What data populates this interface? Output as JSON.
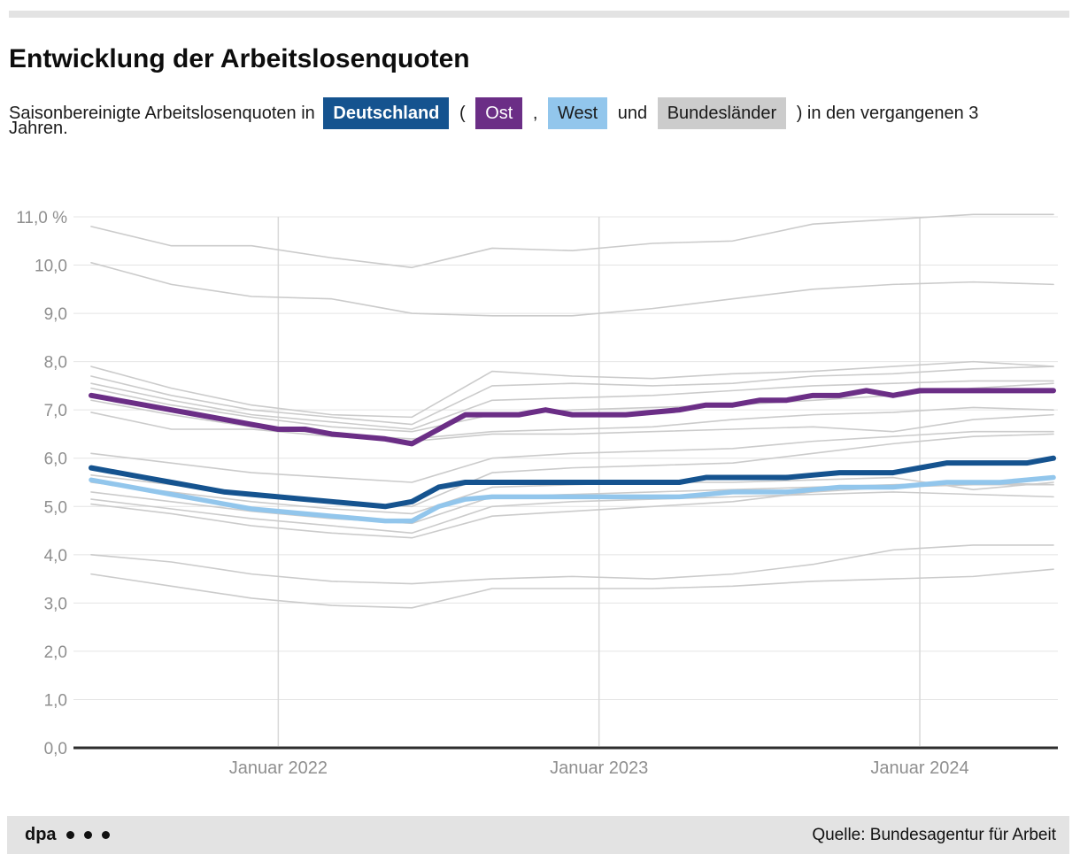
{
  "header": {
    "title": "Entwicklung der Arbeitslosenquoten"
  },
  "subtitle": {
    "part1": "Saisonbereinigte Arbeitslosenquoten in",
    "open_paren": "(",
    "comma": ",",
    "und": "und",
    "part2": ") in den vergangenen 3",
    "part3": "Jahren.",
    "chips": [
      {
        "label": "Deutschland",
        "bg": "#15538f",
        "fg": "#ffffff",
        "bold": true
      },
      {
        "label": "Ost",
        "bg": "#6b2e86",
        "fg": "#ffffff",
        "bold": false
      },
      {
        "label": "West",
        "bg": "#92c6ec",
        "fg": "#1a1a1a",
        "bold": false
      },
      {
        "label": "Bundesländer",
        "bg": "#cccccc",
        "fg": "#1a1a1a",
        "bold": false
      }
    ]
  },
  "chart_data": {
    "type": "line",
    "title": "Entwicklung der Arbeitslosenquoten",
    "xlabel": "",
    "ylabel": "",
    "ylim": [
      0,
      11
    ],
    "grid": true,
    "months_total": 37,
    "y_ticks": [
      {
        "value": 0,
        "label": "0,0"
      },
      {
        "value": 1,
        "label": "1,0"
      },
      {
        "value": 2,
        "label": "2,0"
      },
      {
        "value": 3,
        "label": "3,0"
      },
      {
        "value": 4,
        "label": "4,0"
      },
      {
        "value": 5,
        "label": "5,0"
      },
      {
        "value": 6,
        "label": "6,0"
      },
      {
        "value": 7,
        "label": "7,0"
      },
      {
        "value": 8,
        "label": "8,0"
      },
      {
        "value": 9,
        "label": "9,0"
      },
      {
        "value": 10,
        "label": "10,0"
      },
      {
        "value": 11,
        "label": "11,0 %"
      }
    ],
    "x_ticks": [
      {
        "month": 7,
        "label": "Januar 2022"
      },
      {
        "month": 19,
        "label": "Januar 2023"
      },
      {
        "month": 31,
        "label": "Januar 2024"
      }
    ],
    "series": [
      {
        "name": "West",
        "color": "#92c6ec",
        "stroke_width": 5.5,
        "month_step": 1,
        "values": [
          5.55,
          5.45,
          5.35,
          5.25,
          5.15,
          5.05,
          4.95,
          4.9,
          4.85,
          4.8,
          4.75,
          4.7,
          4.7,
          5.0,
          5.15,
          5.2,
          5.2,
          5.2,
          5.2,
          5.2,
          5.2,
          5.2,
          5.2,
          5.25,
          5.3,
          5.3,
          5.3,
          5.35,
          5.4,
          5.4,
          5.4,
          5.45,
          5.5,
          5.5,
          5.5,
          5.55,
          5.6
        ]
      },
      {
        "name": "Deutschland",
        "color": "#15538f",
        "stroke_width": 6,
        "month_step": 1,
        "values": [
          5.8,
          5.7,
          5.6,
          5.5,
          5.4,
          5.3,
          5.25,
          5.2,
          5.15,
          5.1,
          5.05,
          5.0,
          5.1,
          5.4,
          5.5,
          5.5,
          5.5,
          5.5,
          5.5,
          5.5,
          5.5,
          5.5,
          5.5,
          5.6,
          5.6,
          5.6,
          5.6,
          5.65,
          5.7,
          5.7,
          5.7,
          5.8,
          5.9,
          5.9,
          5.9,
          5.9,
          6.0
        ]
      },
      {
        "name": "Ost",
        "color": "#6b2e86",
        "stroke_width": 6,
        "month_step": 1,
        "values": [
          7.3,
          7.2,
          7.1,
          7.0,
          6.9,
          6.8,
          6.7,
          6.6,
          6.6,
          6.5,
          6.45,
          6.4,
          6.3,
          6.6,
          6.9,
          6.9,
          6.9,
          7.0,
          6.9,
          6.9,
          6.9,
          6.95,
          7.0,
          7.1,
          7.1,
          7.2,
          7.2,
          7.3,
          7.3,
          7.4,
          7.3,
          7.4,
          7.4,
          7.4,
          7.4,
          7.4,
          7.4
        ]
      }
    ],
    "bundeslaender": {
      "color": "#cbcbcb",
      "stroke_width": 1.6,
      "month_step": 3,
      "lines": [
        [
          10.8,
          10.4,
          10.4,
          10.15,
          9.95,
          10.35,
          10.3,
          10.45,
          10.5,
          10.85,
          10.95,
          11.05,
          11.05
        ],
        [
          10.05,
          9.6,
          9.35,
          9.3,
          9.0,
          8.95,
          8.95,
          9.1,
          9.3,
          9.5,
          9.6,
          9.65,
          9.6
        ],
        [
          7.9,
          7.45,
          7.1,
          6.9,
          6.85,
          7.8,
          7.7,
          7.65,
          7.75,
          7.8,
          7.9,
          8.0,
          7.9
        ],
        [
          7.7,
          7.3,
          7.0,
          6.85,
          6.7,
          7.5,
          7.55,
          7.5,
          7.55,
          7.7,
          7.75,
          7.85,
          7.9
        ],
        [
          7.55,
          7.2,
          6.9,
          6.75,
          6.6,
          7.2,
          7.25,
          7.3,
          7.4,
          7.5,
          7.55,
          7.6,
          7.6
        ],
        [
          7.45,
          7.1,
          6.85,
          6.65,
          6.55,
          6.9,
          7.0,
          7.05,
          7.1,
          7.2,
          7.3,
          7.45,
          7.55
        ],
        [
          7.2,
          6.9,
          6.65,
          6.5,
          6.4,
          6.55,
          6.6,
          6.65,
          6.8,
          6.9,
          6.95,
          7.05,
          7.0
        ],
        [
          6.95,
          6.6,
          6.6,
          6.45,
          6.35,
          6.5,
          6.5,
          6.55,
          6.6,
          6.65,
          6.55,
          6.8,
          6.9
        ],
        [
          6.1,
          5.9,
          5.7,
          5.6,
          5.5,
          6.0,
          6.1,
          6.15,
          6.2,
          6.35,
          6.45,
          6.55,
          6.55
        ],
        [
          5.65,
          5.45,
          5.25,
          5.1,
          5.0,
          5.7,
          5.8,
          5.85,
          5.9,
          6.1,
          6.3,
          6.45,
          6.5
        ],
        [
          5.5,
          5.3,
          5.1,
          4.95,
          4.85,
          5.4,
          5.45,
          5.5,
          5.5,
          5.55,
          5.6,
          5.35,
          5.5
        ],
        [
          5.3,
          5.1,
          4.9,
          4.75,
          4.65,
          5.2,
          5.25,
          5.3,
          5.35,
          5.4,
          5.45,
          5.5,
          5.45
        ],
        [
          5.15,
          4.95,
          4.75,
          4.6,
          4.45,
          5.0,
          5.1,
          5.15,
          5.2,
          5.25,
          5.3,
          5.25,
          5.2
        ],
        [
          5.05,
          4.85,
          4.6,
          4.45,
          4.35,
          4.8,
          4.9,
          5.0,
          5.1,
          5.3,
          5.4,
          5.45,
          5.45
        ],
        [
          4.0,
          3.85,
          3.6,
          3.45,
          3.4,
          3.5,
          3.55,
          3.5,
          3.6,
          3.8,
          4.1,
          4.2,
          4.2
        ],
        [
          3.6,
          3.35,
          3.1,
          2.95,
          2.9,
          3.3,
          3.3,
          3.3,
          3.35,
          3.45,
          3.5,
          3.55,
          3.7
        ]
      ]
    }
  },
  "footer": {
    "brand": "dpa",
    "dots": 3,
    "source": "Quelle: Bundesagentur für Arbeit"
  },
  "colors": {
    "axis_label": "#8f8f8f",
    "grid": "#e4e4e4",
    "year_grid": "#d8d8d8",
    "zero_line": "#2e2e2e",
    "accent_bar": "#e3e3e3"
  }
}
